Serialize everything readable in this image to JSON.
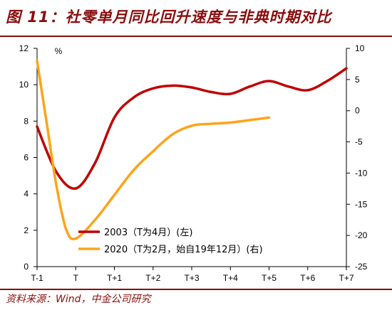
{
  "title": "图 11：社零单月同比回升速度与非典时期对比",
  "source": "资料来源：Wind，中金公司研究",
  "chart_data": {
    "type": "line",
    "categories": [
      "T-1",
      "T",
      "T+1",
      "T+2",
      "T+3",
      "T+4",
      "T+5",
      "T+6",
      "T+7"
    ],
    "left_axis": {
      "unit": "%",
      "ylim": [
        0,
        12
      ],
      "ticks": [
        "0",
        "2",
        "4",
        "6",
        "8",
        "10",
        "12"
      ]
    },
    "right_axis": {
      "ylim": [
        -25,
        10
      ],
      "ticks": [
        "-25",
        "-20",
        "-15",
        "-10",
        "-5",
        "0",
        "5",
        "10"
      ]
    },
    "series": [
      {
        "name": "2003（T为4月）(左)",
        "axis": "left",
        "color": "#c00000",
        "x": [
          -1,
          -0.5,
          0,
          0.5,
          1,
          1.5,
          2,
          2.5,
          3,
          3.5,
          4,
          4.5,
          5,
          5.5,
          6,
          6.5,
          7
        ],
        "values": [
          7.7,
          5.2,
          4.3,
          5.7,
          8.2,
          9.3,
          9.8,
          9.95,
          9.85,
          9.6,
          9.5,
          9.9,
          10.2,
          9.9,
          9.7,
          10.2,
          10.9
        ]
      },
      {
        "name": "2020（T为2月，始自19年12月）(右)",
        "axis": "right",
        "color": "#ffa31a",
        "x": [
          -1,
          -0.75,
          -0.5,
          -0.25,
          0,
          0.5,
          1,
          1.5,
          2,
          2.5,
          3,
          3.5,
          4,
          4.5,
          5
        ],
        "values": [
          8.0,
          -2.0,
          -12.0,
          -19.0,
          -20.5,
          -17.5,
          -13.5,
          -9.5,
          -6.5,
          -3.8,
          -2.4,
          -2.1,
          -1.9,
          -1.5,
          -1.1
        ]
      }
    ],
    "legend_placement": "lower-middle",
    "grid": false
  }
}
